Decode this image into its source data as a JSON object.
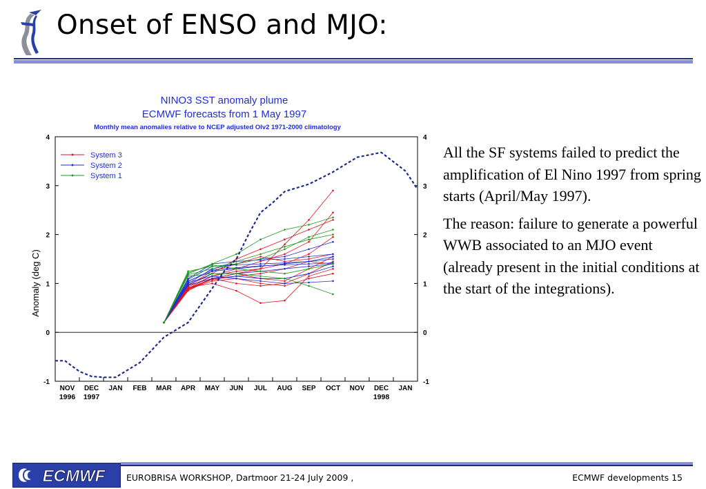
{
  "slide": {
    "title": "Onset of ENSO and MJO:",
    "paragraphs": [
      "All the SF systems failed to predict the amplification of El Nino 1997 from spring starts (April/May 1997).",
      "The reason: failure to generate a powerful WWB associated to an MJO event (already present in the initial conditions at the start of the integrations)."
    ],
    "footer": {
      "logo_text": "ECMWF",
      "left": "EUROBRISA WORKSHOP, Dartmoor 21-24 July 2009 ,",
      "right": "ECMWF developments 15"
    }
  },
  "chart_data": {
    "type": "line",
    "title": "NINO3 SST anomaly plume",
    "subtitle": "ECMWF forecasts from 1 May 1997",
    "subtitle2": "Monthly mean anomalies relative to NCEP adjusted OIv2 1971-2000 climatology",
    "ylabel": "Anomaly (deg C)",
    "ylim": [
      -1,
      4
    ],
    "yticks": [
      -1,
      0,
      1,
      2,
      3,
      4
    ],
    "grid": false,
    "legend_position": "top-left",
    "categories": [
      "NOV",
      "DEC",
      "JAN",
      "FEB",
      "MAR",
      "APR",
      "MAY",
      "JUN",
      "JUL",
      "AUG",
      "SEP",
      "OCT",
      "NOV",
      "DEC",
      "JAN"
    ],
    "year_labels": [
      {
        "index": 0,
        "text": "1996"
      },
      {
        "index": 1,
        "text": "1997"
      },
      {
        "index": 13,
        "text": "1998"
      }
    ],
    "observed": {
      "color": "#1c2a8a",
      "x": [
        -0.5,
        -0.1,
        0.5,
        1.0,
        1.5,
        2.0,
        3.0,
        4.0,
        5.0,
        6.0,
        6.5,
        7.0,
        7.5,
        8.0,
        8.5,
        9.0,
        10.0,
        11.0,
        12.0,
        13.0,
        14.0,
        14.5
      ],
      "y": [
        -0.58,
        -0.58,
        -0.8,
        -0.9,
        -0.92,
        -0.92,
        -0.62,
        -0.1,
        0.2,
        0.9,
        1.25,
        1.5,
        2.0,
        2.45,
        2.65,
        2.88,
        3.03,
        3.28,
        3.58,
        3.68,
        3.3,
        2.93
      ]
    },
    "series": [
      {
        "name": "System 3",
        "color": "#e0141e",
        "members": [
          [
            0.2,
            0.85,
            1.1,
            1.2,
            1.3,
            1.8,
            2.3,
            2.9
          ],
          [
            0.2,
            0.9,
            1.15,
            1.3,
            1.45,
            1.6,
            1.85,
            2.45
          ],
          [
            0.2,
            0.95,
            1.2,
            1.5,
            1.7,
            1.9,
            2.1,
            2.3
          ],
          [
            0.2,
            0.88,
            1.05,
            1.1,
            1.0,
            0.95,
            1.1,
            1.2
          ],
          [
            0.2,
            0.92,
            1.0,
            0.85,
            0.6,
            0.65,
            1.15,
            1.3
          ],
          [
            0.2,
            0.87,
            1.1,
            1.0,
            0.95,
            1.0,
            1.2,
            1.45
          ],
          [
            0.2,
            0.93,
            1.15,
            1.25,
            1.3,
            1.4,
            1.6,
            1.95
          ],
          [
            0.2,
            0.9,
            1.1,
            1.2,
            1.1,
            1.05,
            1.3,
            1.55
          ],
          [
            0.2,
            0.96,
            1.25,
            1.4,
            1.55,
            1.45,
            1.5,
            1.6
          ],
          [
            0.2,
            0.89,
            1.08,
            1.15,
            1.2,
            1.3,
            1.45,
            1.4
          ]
        ]
      },
      {
        "name": "System 2",
        "color": "#1f2ed6",
        "members": [
          [
            0.2,
            1.0,
            1.3,
            1.4,
            1.5,
            1.55,
            1.7,
            1.85
          ],
          [
            0.2,
            1.05,
            1.25,
            1.3,
            1.35,
            1.4,
            1.45,
            1.5
          ],
          [
            0.2,
            0.98,
            1.2,
            1.2,
            1.25,
            1.3,
            1.35,
            1.4
          ],
          [
            0.2,
            1.1,
            1.4,
            1.45,
            1.48,
            1.5,
            1.55,
            1.6
          ],
          [
            0.2,
            1.02,
            1.15,
            1.1,
            1.05,
            1.0,
            1.02,
            1.05
          ],
          [
            0.2,
            1.08,
            1.35,
            1.38,
            1.4,
            1.42,
            1.45,
            1.55
          ],
          [
            0.2,
            0.96,
            1.1,
            1.15,
            1.1,
            1.1,
            1.2,
            1.35
          ],
          [
            0.2,
            1.04,
            1.28,
            1.32,
            1.36,
            1.38,
            1.4,
            1.42
          ]
        ]
      },
      {
        "name": "System 1",
        "color": "#1f9a1f",
        "members": [
          [
            0.2,
            1.2,
            1.4,
            1.6,
            1.9,
            2.1,
            2.2,
            2.35
          ],
          [
            0.2,
            1.25,
            1.35,
            1.4,
            1.5,
            1.7,
            1.95,
            2.1
          ],
          [
            0.2,
            1.15,
            1.2,
            1.2,
            1.15,
            1.1,
            0.95,
            0.78
          ],
          [
            0.2,
            1.18,
            1.3,
            1.45,
            1.6,
            1.75,
            1.9,
            2.0
          ],
          [
            0.2,
            1.22,
            1.38,
            1.3,
            1.25,
            1.2,
            1.3,
            1.4
          ]
        ]
      }
    ],
    "forecast_x": [
      4,
      5,
      6,
      7,
      8,
      9,
      10,
      11
    ]
  }
}
